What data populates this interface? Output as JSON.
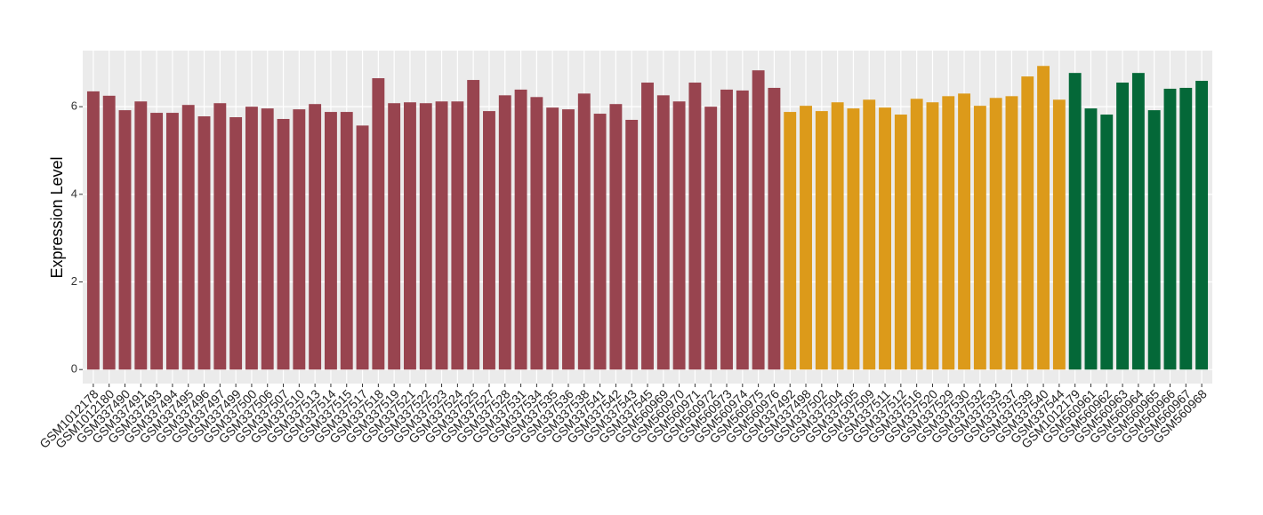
{
  "chart_data": {
    "type": "bar",
    "y_label": "Expression Level",
    "categories": [
      "GSM1012178",
      "GSM1012180",
      "GSM337490",
      "GSM337491",
      "GSM337493",
      "GSM337494",
      "GSM337495",
      "GSM337496",
      "GSM337497",
      "GSM337499",
      "GSM337500",
      "GSM337506",
      "GSM337507",
      "GSM337510",
      "GSM337513",
      "GSM337514",
      "GSM337515",
      "GSM337517",
      "GSM337518",
      "GSM337519",
      "GSM337521",
      "GSM337522",
      "GSM337523",
      "GSM337524",
      "GSM337525",
      "GSM337527",
      "GSM337528",
      "GSM337531",
      "GSM337534",
      "GSM337535",
      "GSM337536",
      "GSM337538",
      "GSM337541",
      "GSM337542",
      "GSM337543",
      "GSM337545",
      "GSM560969",
      "GSM560970",
      "GSM560971",
      "GSM560972",
      "GSM560973",
      "GSM560974",
      "GSM560975",
      "GSM560976",
      "GSM337492",
      "GSM337498",
      "GSM337502",
      "GSM337504",
      "GSM337505",
      "GSM337509",
      "GSM337511",
      "GSM337512",
      "GSM337516",
      "GSM337520",
      "GSM337529",
      "GSM337530",
      "GSM337532",
      "GSM337533",
      "GSM337537",
      "GSM337539",
      "GSM337540",
      "GSM337544",
      "GSM1012179",
      "GSM560961",
      "GSM560962",
      "GSM560963",
      "GSM560964",
      "GSM560965",
      "GSM560966",
      "GSM560967",
      "GSM560968"
    ],
    "values": [
      6.35,
      6.25,
      5.92,
      6.12,
      5.86,
      5.86,
      6.04,
      5.78,
      6.08,
      5.76,
      6.0,
      5.96,
      5.72,
      5.94,
      6.06,
      5.88,
      5.88,
      5.57,
      6.65,
      6.08,
      6.1,
      6.08,
      6.12,
      6.12,
      6.61,
      5.9,
      6.26,
      6.39,
      6.22,
      5.98,
      5.94,
      6.3,
      5.84,
      6.06,
      5.7,
      6.55,
      6.26,
      6.12,
      6.55,
      6.0,
      6.39,
      6.37,
      6.83,
      6.43,
      5.88,
      6.02,
      5.9,
      6.1,
      5.96,
      6.16,
      5.98,
      5.82,
      6.18,
      6.1,
      6.24,
      6.3,
      6.02,
      6.2,
      6.24,
      6.69,
      6.93,
      6.16,
      6.77,
      5.96,
      5.82,
      6.55,
      6.77,
      5.92,
      6.41,
      6.43,
      6.59
    ],
    "colors": [
      "#98444f",
      "#98444f",
      "#98444f",
      "#98444f",
      "#98444f",
      "#98444f",
      "#98444f",
      "#98444f",
      "#98444f",
      "#98444f",
      "#98444f",
      "#98444f",
      "#98444f",
      "#98444f",
      "#98444f",
      "#98444f",
      "#98444f",
      "#98444f",
      "#98444f",
      "#98444f",
      "#98444f",
      "#98444f",
      "#98444f",
      "#98444f",
      "#98444f",
      "#98444f",
      "#98444f",
      "#98444f",
      "#98444f",
      "#98444f",
      "#98444f",
      "#98444f",
      "#98444f",
      "#98444f",
      "#98444f",
      "#98444f",
      "#98444f",
      "#98444f",
      "#98444f",
      "#98444f",
      "#98444f",
      "#98444f",
      "#98444f",
      "#98444f",
      "#dc9a1a",
      "#dc9a1a",
      "#dc9a1a",
      "#dc9a1a",
      "#dc9a1a",
      "#dc9a1a",
      "#dc9a1a",
      "#dc9a1a",
      "#dc9a1a",
      "#dc9a1a",
      "#dc9a1a",
      "#dc9a1a",
      "#dc9a1a",
      "#dc9a1a",
      "#dc9a1a",
      "#dc9a1a",
      "#dc9a1a",
      "#dc9a1a",
      "#046838",
      "#046838",
      "#046838",
      "#046838",
      "#046838",
      "#046838",
      "#046838",
      "#046838",
      "#046838"
    ],
    "ylim": [
      -0.32,
      7.28
    ],
    "yticks": [
      0,
      2,
      4,
      6
    ],
    "grid": true
  }
}
